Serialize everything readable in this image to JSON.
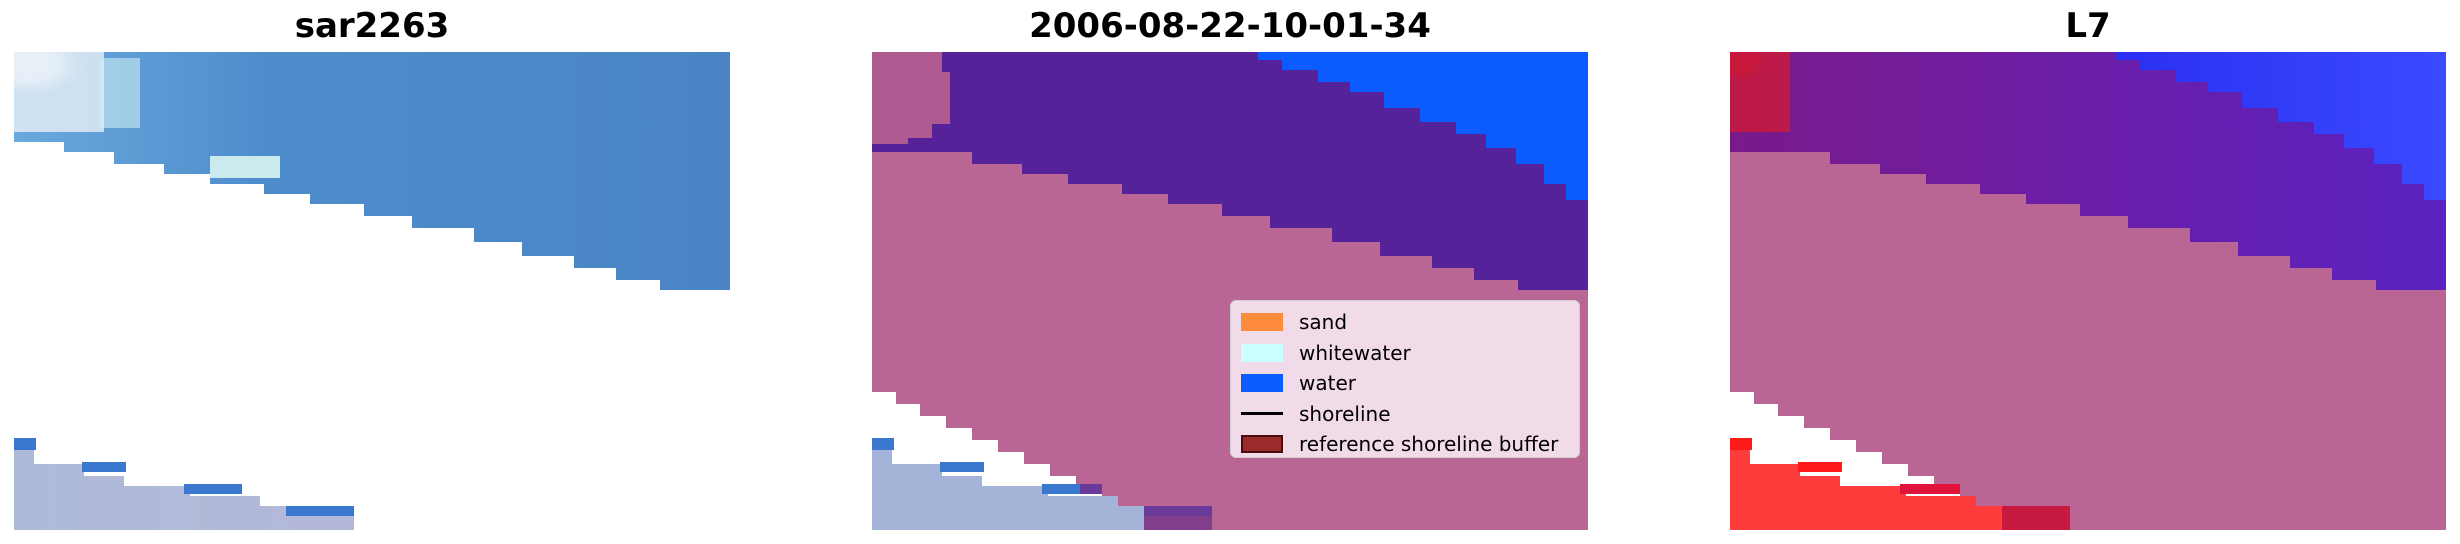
{
  "panels": [
    {
      "title": "sar2263"
    },
    {
      "title": "2006-08-22-10-01-34"
    },
    {
      "title": "L7"
    }
  ],
  "legend": {
    "items": [
      {
        "label": "sand",
        "color": "#ff8c3c",
        "kind": "patch"
      },
      {
        "label": "whitewater",
        "color": "#ccffff",
        "kind": "patch"
      },
      {
        "label": "water",
        "color": "#0a5cff",
        "kind": "patch"
      },
      {
        "label": "shoreline",
        "color": "#000000",
        "kind": "line"
      },
      {
        "label": "reference shoreline buffer",
        "color": "#9b2a2a",
        "kind": "patch-outlined"
      }
    ]
  },
  "colors": {
    "sea_blue": "#4a86c8",
    "surf_white": "#e8f6f8",
    "land_pink": "#ba6694",
    "water_purple": "#56229a",
    "water_blue": "#0a5cff",
    "sand_lilac": "#a4b4d8",
    "red_class": "#ff3c3c",
    "background": "#ffffff"
  }
}
